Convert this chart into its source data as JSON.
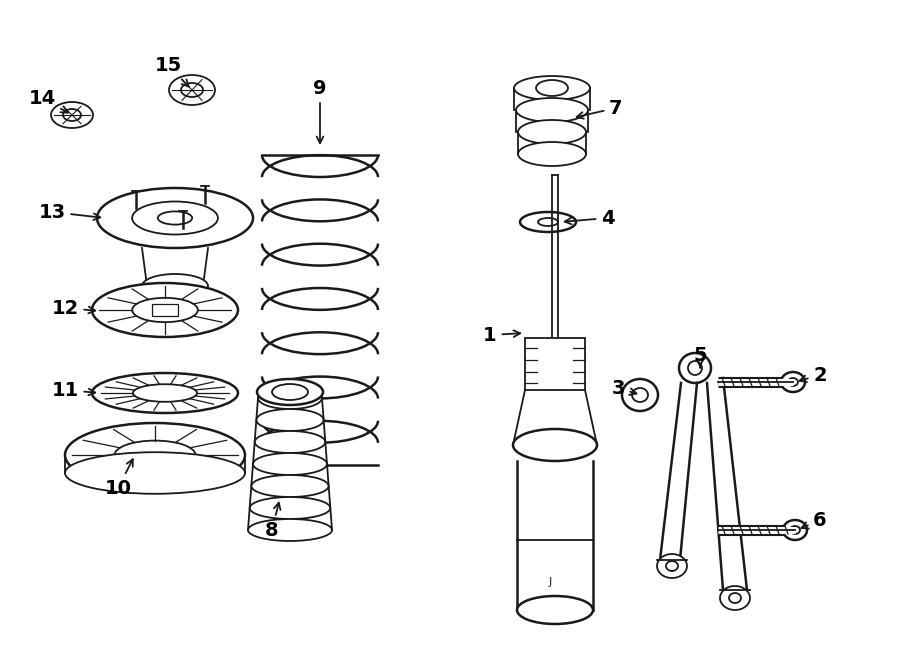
{
  "bg_color": "#ffffff",
  "line_color": "#1a1a1a",
  "label_color": "#000000",
  "label_fontsize": 14,
  "figw": 9.0,
  "figh": 6.62,
  "dpi": 100,
  "parts_labels": {
    "1": [
      490,
      335,
      525,
      333
    ],
    "2": [
      820,
      375,
      795,
      382
    ],
    "3": [
      618,
      388,
      641,
      395
    ],
    "4": [
      608,
      218,
      560,
      222
    ],
    "5": [
      700,
      355,
      700,
      368
    ],
    "6": [
      820,
      520,
      797,
      530
    ],
    "7": [
      616,
      108,
      572,
      118
    ],
    "8": [
      272,
      530,
      280,
      498
    ],
    "9": [
      320,
      88,
      320,
      148
    ],
    "10": [
      118,
      488,
      135,
      455
    ],
    "11": [
      65,
      390,
      100,
      393
    ],
    "12": [
      65,
      308,
      100,
      311
    ],
    "13": [
      52,
      212,
      105,
      218
    ],
    "14": [
      42,
      98,
      72,
      115
    ],
    "15": [
      168,
      65,
      192,
      90
    ]
  }
}
